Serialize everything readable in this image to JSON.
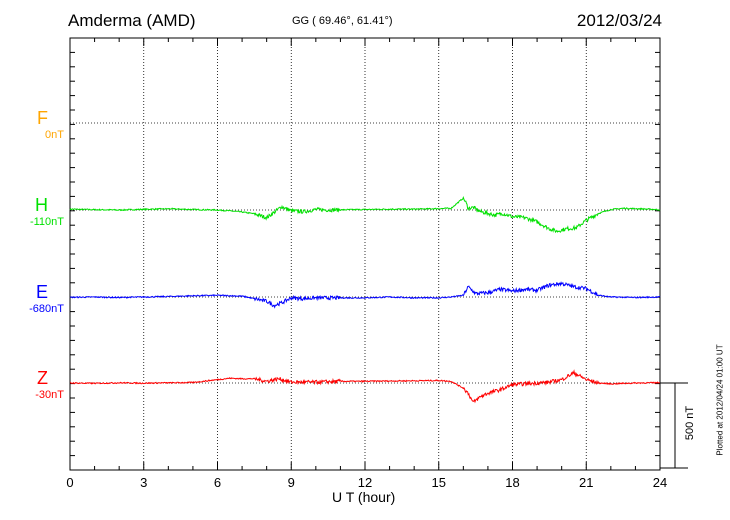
{
  "header": {
    "station": "Amderma (AMD)",
    "coords": "GG ( 69.46°,  61.41°)",
    "date": "2012/03/24"
  },
  "components": [
    {
      "name": "F",
      "baseline": "0nT",
      "color": "#ffa500"
    },
    {
      "name": "H",
      "baseline": "-110nT",
      "color": "#00e000"
    },
    {
      "name": "E",
      "baseline": "-680nT",
      "color": "#0000ff"
    },
    {
      "name": "Z",
      "baseline": "-30nT",
      "color": "#ff0000"
    }
  ],
  "scale_label": "500 nT",
  "plotted_at": "Plotted at 2012/04/24 01:00 UT",
  "chart_data": {
    "type": "line",
    "xlabel": "U T (hour)",
    "xlim": [
      0,
      24
    ],
    "x_ticks": [
      "0",
      "3",
      "6",
      "9",
      "12",
      "15",
      "18",
      "21",
      "24"
    ],
    "units": "nT deviation from component baseline",
    "series": [
      {
        "name": "H",
        "color": "#00e000",
        "x": [
          0,
          1,
          2,
          3,
          4,
          5,
          6,
          6.5,
          7,
          7.5,
          8,
          8.3,
          8.6,
          9,
          9.5,
          10,
          10.5,
          11,
          12,
          13,
          14,
          15,
          15.5,
          16,
          16.1,
          16.2,
          16.4,
          16.7,
          17,
          17.3,
          17.6,
          18,
          18.5,
          19,
          19.5,
          19.8,
          20.2,
          20.6,
          21,
          21.5,
          22,
          22.5,
          23,
          24
        ],
        "y": [
          5,
          2,
          0,
          4,
          7,
          3,
          0,
          -5,
          -12,
          -22,
          -45,
          -15,
          20,
          -5,
          -10,
          3,
          0,
          1,
          3,
          5,
          5,
          8,
          10,
          70,
          45,
          10,
          15,
          -10,
          -20,
          -30,
          -20,
          -40,
          -45,
          -70,
          -110,
          -125,
          -110,
          -105,
          -60,
          -20,
          3,
          10,
          8,
          2
        ]
      },
      {
        "name": "E",
        "color": "#0000ff",
        "x": [
          0,
          1,
          2,
          3,
          4,
          5,
          6,
          7,
          7.5,
          8,
          8.3,
          8.6,
          9,
          9.5,
          10,
          11,
          12,
          13,
          14,
          15,
          15.5,
          16,
          16.2,
          16.5,
          17,
          17.5,
          18,
          18.5,
          19,
          19.5,
          20,
          20.5,
          21,
          21.5,
          22,
          23,
          24
        ],
        "y": [
          -2,
          0,
          -3,
          0,
          3,
          7,
          10,
          5,
          -10,
          -25,
          -50,
          -35,
          -5,
          -10,
          -5,
          -5,
          -5,
          0,
          -5,
          -5,
          0,
          10,
          60,
          20,
          25,
          45,
          35,
          45,
          40,
          70,
          80,
          60,
          50,
          10,
          0,
          -3,
          0
        ]
      },
      {
        "name": "Z",
        "color": "#ff0000",
        "x": [
          0,
          1,
          2,
          3,
          4,
          5,
          6,
          6.5,
          7,
          7.5,
          8,
          8.5,
          9,
          9.5,
          10,
          11,
          12,
          13,
          14,
          15,
          15.5,
          16,
          16.2,
          16.4,
          16.7,
          17,
          17.5,
          18,
          18.5,
          19,
          19.5,
          20,
          20.5,
          21,
          21.5,
          22,
          23,
          24
        ],
        "y": [
          0,
          -2,
          1,
          -1,
          1,
          3,
          20,
          28,
          25,
          25,
          10,
          25,
          5,
          5,
          5,
          10,
          10,
          12,
          13,
          15,
          10,
          -30,
          -60,
          -115,
          -80,
          -60,
          -40,
          -10,
          -5,
          0,
          5,
          20,
          60,
          20,
          0,
          -5,
          0,
          2
        ]
      }
    ]
  }
}
